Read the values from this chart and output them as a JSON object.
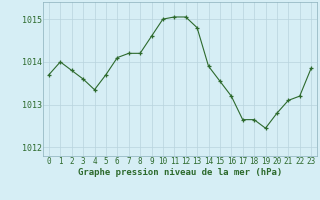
{
  "x": [
    0,
    1,
    2,
    3,
    4,
    5,
    6,
    7,
    8,
    9,
    10,
    11,
    12,
    13,
    14,
    15,
    16,
    17,
    18,
    19,
    20,
    21,
    22,
    23
  ],
  "y": [
    1013.7,
    1014.0,
    1013.8,
    1013.6,
    1013.35,
    1013.7,
    1014.1,
    1014.2,
    1014.2,
    1014.6,
    1015.0,
    1015.05,
    1015.05,
    1014.8,
    1013.9,
    1013.55,
    1013.2,
    1012.65,
    1012.65,
    1012.45,
    1012.8,
    1013.1,
    1013.2,
    1013.85
  ],
  "line_color": "#2d6a2d",
  "marker": "+",
  "marker_size": 3,
  "bg_color": "#d6eef5",
  "grid_color": "#b8d4dd",
  "ylabel_ticks": [
    1012,
    1013,
    1014,
    1015
  ],
  "xlabel_label": "Graphe pression niveau de la mer (hPa)",
  "ylim": [
    1011.8,
    1015.4
  ],
  "xlim": [
    -0.5,
    23.5
  ],
  "tick_color": "#2d6a2d",
  "label_color": "#2d6a2d",
  "xlabel_fontsize": 6.5,
  "ylabel_fontsize": 6,
  "tick_fontsize": 5.5
}
